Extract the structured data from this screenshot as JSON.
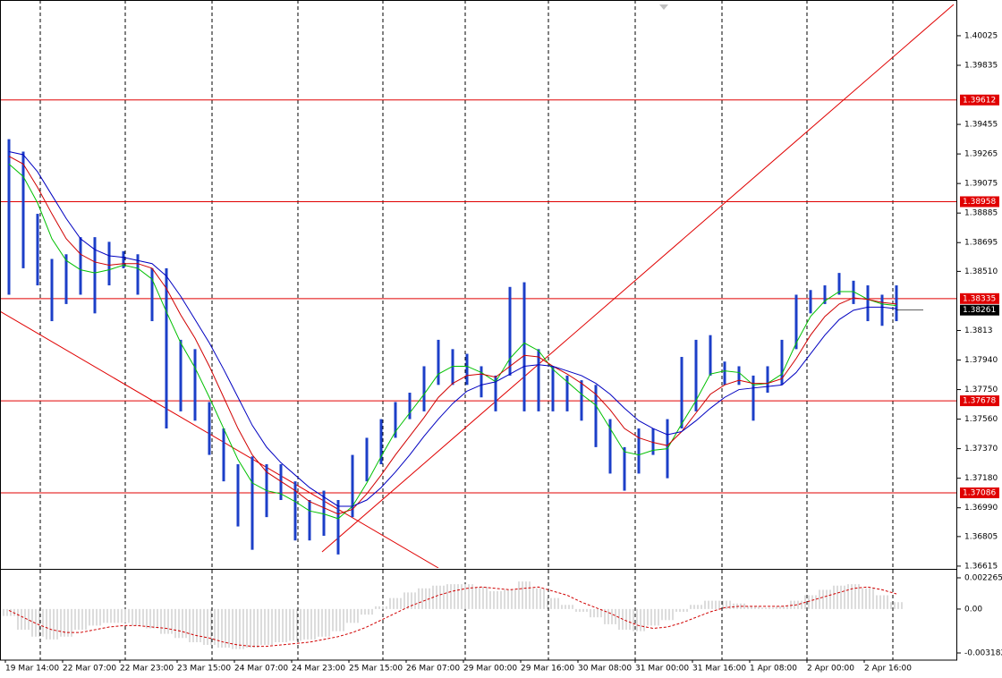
{
  "chart_data": [
    {
      "type": "range",
      "categories": [
        "19 Mar 14:00",
        null,
        null,
        null,
        "22 Mar 07:00",
        null,
        null,
        null,
        "22 Mar 23:00",
        null,
        null,
        null,
        "23 Mar 15:00",
        null,
        null,
        null,
        "24 Mar 07:00",
        null,
        null,
        null,
        "24 Mar 23:00",
        null,
        null,
        null,
        "25 Mar 15:00",
        null,
        null,
        null,
        "26 Mar 07:00",
        null,
        null,
        null,
        "29 Mar 00:00",
        null,
        null,
        null,
        "29 Mar 16:00",
        null,
        null,
        null,
        "30 Mar 08:00",
        null,
        null,
        null,
        "31 Mar 00:00",
        null,
        null,
        null,
        "31 Mar 16:00",
        null,
        null,
        null,
        "1 Apr 08:00",
        null,
        null,
        null,
        "2 Apr 00:00",
        null,
        null,
        null,
        "2 Apr 16:00",
        null,
        null
      ],
      "high": [
        1.3936,
        1.3928,
        1.3888,
        1.3859,
        1.3862,
        1.3873,
        1.3873,
        1.387,
        1.3864,
        1.3862,
        1.3853,
        1.3853,
        1.3807,
        1.3801,
        1.3767,
        1.375,
        1.3727,
        1.3732,
        1.3727,
        1.3727,
        1.3716,
        1.3704,
        1.371,
        1.3704,
        1.3733,
        1.3744,
        1.3756,
        1.3767,
        1.3773,
        1.379,
        1.3807,
        1.3801,
        1.3798,
        1.379,
        1.3784,
        1.3841,
        1.3844,
        1.3801,
        1.379,
        1.3784,
        1.3781,
        1.3778,
        1.3756,
        1.3738,
        1.375,
        1.375,
        1.3756,
        1.3796,
        1.3807,
        1.381,
        1.3793,
        1.379,
        1.3784,
        1.379,
        1.3807,
        1.3836,
        1.3839,
        1.3842,
        1.385,
        1.3845,
        1.3842,
        1.3836,
        1.3842
      ],
      "low": [
        1.3836,
        1.3853,
        1.3842,
        1.3819,
        1.383,
        1.3836,
        1.3824,
        1.3842,
        1.3853,
        1.3836,
        1.3819,
        1.375,
        1.3761,
        1.3755,
        1.3733,
        1.3716,
        1.3687,
        1.3672,
        1.3693,
        1.3704,
        1.3678,
        1.3678,
        1.3681,
        1.3669,
        1.3693,
        1.3716,
        1.3727,
        1.3744,
        1.3756,
        1.3761,
        1.3778,
        1.3778,
        1.3778,
        1.377,
        1.3761,
        1.3784,
        1.3761,
        1.3761,
        1.3761,
        1.3761,
        1.3755,
        1.3738,
        1.3721,
        1.371,
        1.3721,
        1.3733,
        1.3718,
        1.375,
        1.3761,
        1.3784,
        1.3778,
        1.3778,
        1.3755,
        1.3773,
        1.3778,
        1.3801,
        1.3824,
        1.383,
        1.3836,
        1.383,
        1.3819,
        1.3816,
        1.3819
      ],
      "color": "#1c3fc8",
      "moving_averages": [
        {
          "color": "#00c000",
          "values": [
            1.392,
            1.3912,
            1.3895,
            1.3872,
            1.3858,
            1.3852,
            1.385,
            1.3852,
            1.3855,
            1.3853,
            1.3846,
            1.3825,
            1.3805,
            1.3789,
            1.377,
            1.375,
            1.373,
            1.3715,
            1.371,
            1.3708,
            1.3703,
            1.3697,
            1.3695,
            1.3692,
            1.37,
            1.3715,
            1.3732,
            1.3748,
            1.376,
            1.3772,
            1.3785,
            1.379,
            1.379,
            1.3786,
            1.378,
            1.3795,
            1.3805,
            1.38,
            1.3788,
            1.378,
            1.3772,
            1.3765,
            1.375,
            1.3735,
            1.3733,
            1.3736,
            1.3737,
            1.3753,
            1.3768,
            1.3785,
            1.3787,
            1.3786,
            1.3778,
            1.3779,
            1.3785,
            1.3805,
            1.3822,
            1.3832,
            1.3838,
            1.3838,
            1.3833,
            1.383,
            1.3829
          ]
        },
        {
          "color": "#d00000",
          "values": [
            1.3925,
            1.392,
            1.3905,
            1.3888,
            1.3872,
            1.3862,
            1.3857,
            1.3855,
            1.3856,
            1.3856,
            1.3853,
            1.384,
            1.3823,
            1.3808,
            1.379,
            1.377,
            1.375,
            1.3733,
            1.3722,
            1.3716,
            1.371,
            1.3703,
            1.3699,
            1.3695,
            1.3698,
            1.3708,
            1.372,
            1.3733,
            1.3745,
            1.3757,
            1.377,
            1.3779,
            1.3784,
            1.3785,
            1.3783,
            1.379,
            1.3797,
            1.3796,
            1.379,
            1.3785,
            1.3779,
            1.3772,
            1.3762,
            1.375,
            1.3744,
            1.3741,
            1.3739,
            1.3748,
            1.376,
            1.3772,
            1.3778,
            1.3781,
            1.3779,
            1.3779,
            1.3782,
            1.3795,
            1.381,
            1.3822,
            1.383,
            1.3834,
            1.3833,
            1.3831,
            1.383
          ]
        },
        {
          "color": "#0000c0",
          "values": [
            1.3928,
            1.3926,
            1.3915,
            1.39,
            1.3885,
            1.3872,
            1.3865,
            1.3861,
            1.386,
            1.3858,
            1.3856,
            1.3848,
            1.3835,
            1.382,
            1.3805,
            1.3788,
            1.377,
            1.3752,
            1.3738,
            1.3728,
            1.372,
            1.3712,
            1.3706,
            1.37,
            1.37,
            1.3704,
            1.3712,
            1.3722,
            1.3733,
            1.3745,
            1.3756,
            1.3766,
            1.3774,
            1.3778,
            1.378,
            1.3785,
            1.379,
            1.3791,
            1.379,
            1.3787,
            1.3784,
            1.3779,
            1.3772,
            1.3763,
            1.3755,
            1.375,
            1.3746,
            1.3748,
            1.3755,
            1.3763,
            1.377,
            1.3775,
            1.3776,
            1.3777,
            1.3778,
            1.3786,
            1.3798,
            1.381,
            1.382,
            1.3826,
            1.3828,
            1.3828,
            1.3827
          ]
        }
      ],
      "levels": [
        1.39612,
        1.38958,
        1.38335,
        1.37678,
        1.37086
      ],
      "level_color": "#e00000",
      "current_price": 1.38261,
      "ylim": [
        1.36603,
        1.40226
      ],
      "yticks": [
        1.40025,
        1.39835,
        1.39455,
        1.39265,
        1.39075,
        1.38885,
        1.38695,
        {
          "value": 1.3851,
          "label": "1.38510"
        },
        1.3813,
        {
          "value": 1.3794,
          "label": "1.37940"
        },
        {
          "value": 1.3775,
          "label": "1.37750"
        },
        {
          "value": 1.3756,
          "label": "1.37560"
        },
        {
          "value": 1.3737,
          "label": "1.37370"
        },
        {
          "value": 1.3718,
          "label": "1.37180"
        },
        {
          "value": 1.3699,
          "label": "1.36990"
        },
        1.36805,
        1.36615
      ]
    },
    {
      "type": "macd",
      "histogram": {
        "color": "#b8b8b8",
        "values": [
          -0.0005,
          -0.0015,
          -0.002,
          -0.0022,
          -0.002,
          -0.0015,
          -0.0012,
          -0.001,
          -0.001,
          -0.0012,
          -0.0014,
          -0.0018,
          -0.0021,
          -0.0024,
          -0.0026,
          -0.0028,
          -0.0029,
          -0.0028,
          -0.0026,
          -0.0024,
          -0.0023,
          -0.0022,
          -0.002,
          -0.0016,
          -0.001,
          -0.0004,
          0.0002,
          0.0008,
          0.0012,
          0.0015,
          0.0017,
          0.0018,
          0.0018,
          0.0016,
          0.0013,
          0.0014,
          0.002,
          0.0015,
          0.0008,
          0.0003,
          -0.0002,
          -0.0006,
          -0.0011,
          -0.0015,
          -0.0016,
          -0.0012,
          -0.0008,
          -0.0002,
          0.0003,
          0.0006,
          0.0006,
          0.0004,
          0.0002,
          0.0001,
          0.0002,
          0.0006,
          0.001,
          0.0014,
          0.0017,
          0.0018,
          0.0015,
          0.001,
          0.0005
        ]
      },
      "signal": {
        "color": "#d00000",
        "values": [
          -0.0001,
          -0.0006,
          -0.0011,
          -0.0015,
          -0.0017,
          -0.0017,
          -0.0015,
          -0.0013,
          -0.0012,
          -0.0012,
          -0.0013,
          -0.0014,
          -0.0016,
          -0.0019,
          -0.0021,
          -0.0024,
          -0.0026,
          -0.0027,
          -0.0027,
          -0.0026,
          -0.0025,
          -0.0024,
          -0.0022,
          -0.002,
          -0.0017,
          -0.0013,
          -0.0008,
          -0.0003,
          0.0002,
          0.0006,
          0.001,
          0.0013,
          0.0015,
          0.0016,
          0.0015,
          0.0014,
          0.0015,
          0.0016,
          0.0013,
          0.001,
          0.0005,
          0.0001,
          -0.0003,
          -0.0008,
          -0.0012,
          -0.0014,
          -0.0013,
          -0.001,
          -0.0006,
          -0.0002,
          0.0001,
          0.0002,
          0.0002,
          0.0002,
          0.0002,
          0.0003,
          0.0006,
          0.0009,
          0.0012,
          0.0015,
          0.0016,
          0.0014,
          0.0011
        ]
      },
      "ylim": [
        -0.003701,
        0.002784
      ],
      "yticks": [
        0.002265,
        {
          "value": 0,
          "label": "0.00"
        },
        -0.003182
      ]
    }
  ]
}
